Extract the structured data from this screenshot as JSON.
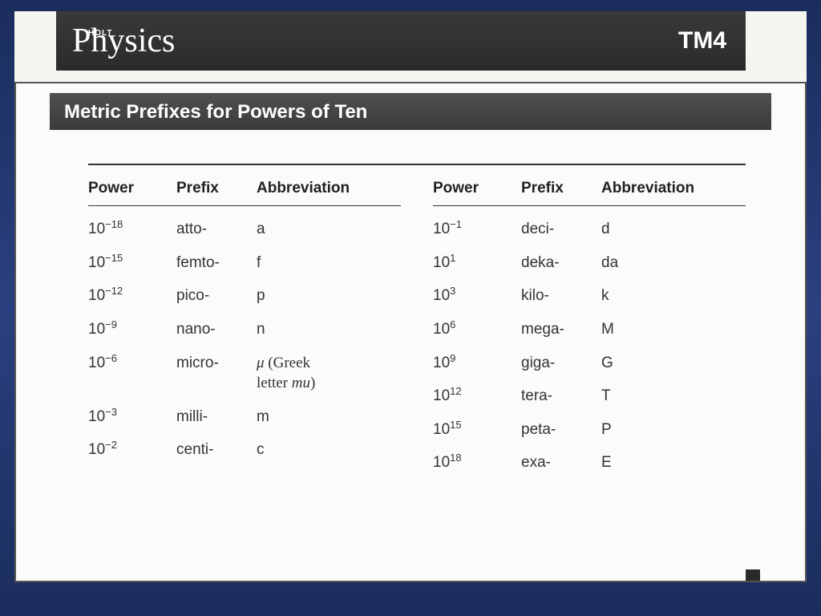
{
  "brand": {
    "small": "HOLT",
    "main": "Physics"
  },
  "tm_code": "TM4",
  "title": "Metric Prefixes for Powers of Ten",
  "headers": {
    "power": "Power",
    "prefix": "Prefix",
    "abbrev": "Abbreviation"
  },
  "left_column": [
    {
      "base": "10",
      "exp": "−18",
      "prefix": "atto-",
      "abbrev": "a"
    },
    {
      "base": "10",
      "exp": "−15",
      "prefix": "femto-",
      "abbrev": "f"
    },
    {
      "base": "10",
      "exp": "−12",
      "prefix": "pico-",
      "abbrev": "p"
    },
    {
      "base": "10",
      "exp": "−9",
      "prefix": "nano-",
      "abbrev": "n"
    },
    {
      "base": "10",
      "exp": "−6",
      "prefix": "micro-",
      "abbrev": "μ (Greek letter mu)",
      "is_mu": true
    },
    {
      "base": "10",
      "exp": "−3",
      "prefix": "milli-",
      "abbrev": "m"
    },
    {
      "base": "10",
      "exp": "−2",
      "prefix": "centi-",
      "abbrev": "c"
    }
  ],
  "right_column": [
    {
      "base": "10",
      "exp": "−1",
      "prefix": "deci-",
      "abbrev": "d"
    },
    {
      "base": "10",
      "exp": "1",
      "prefix": "deka-",
      "abbrev": "da"
    },
    {
      "base": "10",
      "exp": "3",
      "prefix": "kilo-",
      "abbrev": "k"
    },
    {
      "base": "10",
      "exp": "6",
      "prefix": "mega-",
      "abbrev": "M"
    },
    {
      "base": "10",
      "exp": "9",
      "prefix": "giga-",
      "abbrev": "G"
    },
    {
      "base": "10",
      "exp": "12",
      "prefix": "tera-",
      "abbrev": "T"
    },
    {
      "base": "10",
      "exp": "15",
      "prefix": "peta-",
      "abbrev": "P"
    },
    {
      "base": "10",
      "exp": "18",
      "prefix": "exa-",
      "abbrev": "E"
    }
  ],
  "style": {
    "background_gradient": [
      "#1a2d5c",
      "#2a4080",
      "#1a2d5c"
    ],
    "page_bg": "#f5f5f2",
    "header_bg": "#2a2a2a",
    "title_bg": "#3a3a3a",
    "text_color": "#333333",
    "rule_color": "#333333",
    "brand_fontsize": 42,
    "title_fontsize": 24,
    "body_fontsize": 19,
    "exp_fontsize": 13
  }
}
